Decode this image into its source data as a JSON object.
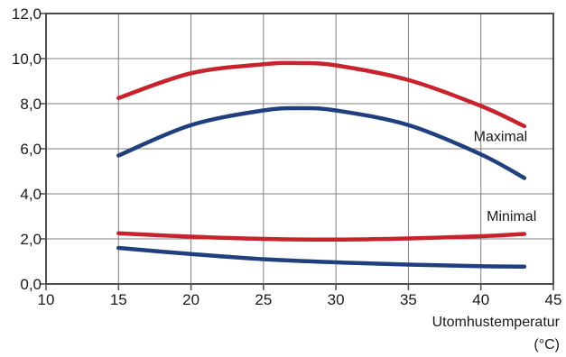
{
  "chart_data": {
    "type": "line",
    "title": "",
    "xlabel_lines": [
      "Utomhustemperatur",
      "(°C)"
    ],
    "ylabel": "",
    "xlim": [
      10,
      45
    ],
    "ylim": [
      0,
      12
    ],
    "x_ticks": [
      10,
      15,
      20,
      25,
      30,
      35,
      40,
      45
    ],
    "y_ticks": [
      0,
      2,
      4,
      6,
      8,
      10,
      12
    ],
    "y_tick_labels": [
      "0,0",
      "2,0",
      "4,0",
      "6,0",
      "8,0",
      "10,0",
      "12,0"
    ],
    "grid": true,
    "legend": null,
    "annotations": [
      {
        "text": "Maximal",
        "x": 39.5,
        "y": 6.35
      },
      {
        "text": "Minimal",
        "x": 40.4,
        "y": 2.8
      }
    ],
    "colors": {
      "red": "#c8232c",
      "blue": "#1f3f7f",
      "grid": "#7f7f7f",
      "frame": "#4d4d4d"
    },
    "series": [
      {
        "color": "red",
        "x": [
          15,
          20,
          25,
          27.5,
          30,
          35,
          40,
          43
        ],
        "y": [
          8.25,
          9.35,
          9.75,
          9.8,
          9.7,
          9.05,
          7.9,
          7.0
        ]
      },
      {
        "color": "blue",
        "x": [
          15,
          20,
          25,
          27.5,
          30,
          35,
          40,
          43
        ],
        "y": [
          5.7,
          7.05,
          7.7,
          7.8,
          7.7,
          7.05,
          5.75,
          4.7
        ]
      },
      {
        "color": "red",
        "x": [
          15,
          20,
          25,
          30,
          35,
          40,
          43
        ],
        "y": [
          2.25,
          2.1,
          2.0,
          1.97,
          2.02,
          2.12,
          2.22
        ]
      },
      {
        "color": "blue",
        "x": [
          15,
          20,
          25,
          30,
          35,
          40,
          43
        ],
        "y": [
          1.6,
          1.33,
          1.1,
          0.96,
          0.86,
          0.79,
          0.77
        ]
      }
    ]
  }
}
